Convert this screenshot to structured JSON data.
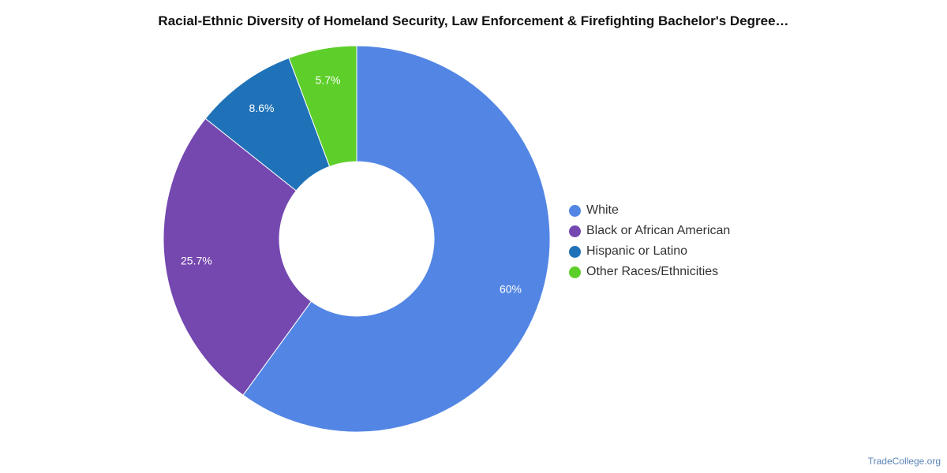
{
  "chart_data": {
    "type": "pie",
    "title": "Racial-Ethnic Diversity of Homeland Security, Law Enforcement & Firefighting Bachelor's Degree…",
    "donut": true,
    "categories": [
      "White",
      "Black or African American",
      "Hispanic or Latino",
      "Other Races/Ethnicities"
    ],
    "values": [
      60,
      25.7,
      8.6,
      5.7
    ],
    "data_labels": [
      "60%",
      "25.7%",
      "8.6%",
      "5.7%"
    ],
    "colors": [
      "#5386e4",
      "#7548b0",
      "#1f72b8",
      "#5ecf2a"
    ],
    "legend_position": "right"
  },
  "credit": "TradeCollege.org"
}
